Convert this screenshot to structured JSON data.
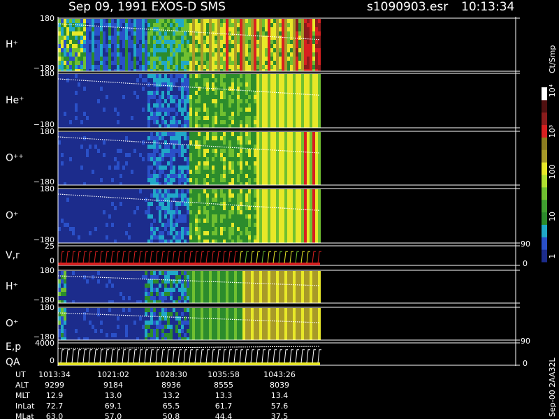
{
  "header": {
    "title": "Sep 09, 1991   EXOS-D SMS",
    "file": "s1090903.esr",
    "time": "10:13:34"
  },
  "panels": [
    {
      "label": "H⁺",
      "ticks": [
        "180",
        "−180"
      ]
    },
    {
      "label": "He⁺",
      "ticks": [
        "180",
        "−180"
      ]
    },
    {
      "label": "O⁺⁺",
      "ticks": [
        "180",
        "−180"
      ]
    },
    {
      "label": "O⁺",
      "ticks": [
        "180",
        "−180"
      ]
    },
    {
      "label": "V,r",
      "ticks": [
        "25",
        "0"
      ],
      "right_ticks": [
        "90",
        "0"
      ]
    },
    {
      "label": "H⁺",
      "ticks": [
        "180",
        "−180"
      ]
    },
    {
      "label": "O⁺",
      "ticks": [
        "180",
        "−180"
      ]
    },
    {
      "label": "E,p",
      "label2": "QA",
      "ticks": [
        "4000",
        "0"
      ],
      "right_ticks": [
        "90",
        "0"
      ]
    }
  ],
  "colorbar": {
    "unit": "Ct/Smp",
    "labels": [
      "10⁴",
      "10³",
      "100",
      "10",
      "1"
    ]
  },
  "table": {
    "rows": [
      [
        "UT",
        "1013:34",
        "1021:02",
        "1028:30",
        "1035:58",
        "1043:26"
      ],
      [
        "ALT",
        "9299",
        "9184",
        "8936",
        "8555",
        "8039"
      ],
      [
        "MLT",
        "12.9",
        "13.0",
        "13.2",
        "13.3",
        "13.4"
      ],
      [
        "InLat",
        "72.7",
        "69.1",
        "65.5",
        "61.7",
        "57.6"
      ],
      [
        "MLat",
        "63.0",
        "57.0",
        "50.8",
        "44.4",
        "37.5"
      ]
    ]
  },
  "footer": "Sep-00 2AA32L"
}
